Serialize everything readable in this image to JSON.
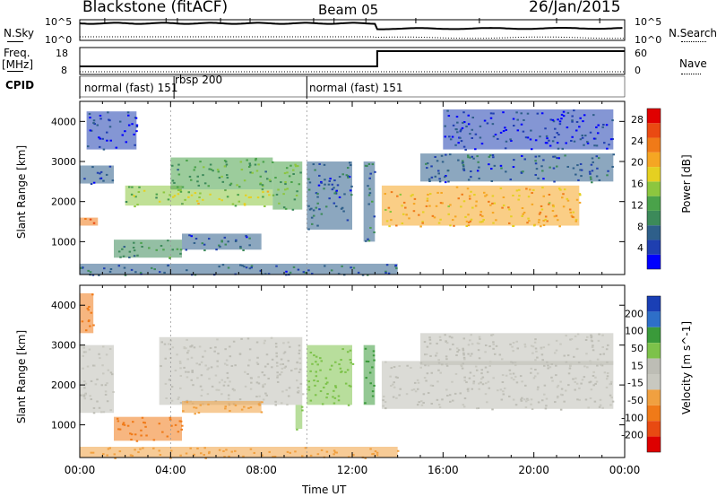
{
  "header": {
    "station": "Blackstone (fitACF)",
    "beam": "Beam 05",
    "date": "26/Jan/2015"
  },
  "noise_panel": {
    "left_label": "N.Sky",
    "left_ticks": [
      "10^5",
      "10^0"
    ],
    "right_label": "N.Search",
    "right_ticks": [
      "10^5",
      "10^0"
    ]
  },
  "freq_panel": {
    "left_label_line1": "Freq.",
    "left_label_line2": "[MHz]",
    "left_ticks": [
      "18",
      "8"
    ],
    "right_label": "Nave",
    "right_ticks": [
      "60",
      "0"
    ]
  },
  "cpid": {
    "label": "CPID",
    "modes": [
      {
        "name": "normal (fast) 151",
        "start_hour": 0
      },
      {
        "name": "rbsp 200",
        "start_hour": 4.15
      },
      {
        "name": "normal (fast) 151",
        "start_hour": 10
      }
    ]
  },
  "x_axis": {
    "label": "Time UT",
    "ticks": [
      "00:00",
      "04:00",
      "08:00",
      "12:00",
      "16:00",
      "20:00",
      "00:00"
    ],
    "range_hours": [
      0,
      24
    ]
  },
  "colors": {
    "power": [
      "#0000ff",
      "#1f3fb0",
      "#2e5f8a",
      "#3c8a5a",
      "#4aa24a",
      "#8cc63f",
      "#e5d021",
      "#f5a623",
      "#f07a18",
      "#ea4a12",
      "#e00000"
    ],
    "velocity": [
      "#1a3fb5",
      "#2e6fc8",
      "#3a9a3a",
      "#7dc24a",
      "#bdbdb5",
      "#c8c8c0",
      "#f0a040",
      "#f07a18",
      "#e84a12",
      "#dd0000"
    ]
  },
  "chart_data": [
    {
      "type": "heatmap",
      "title": "Power",
      "xlabel": "Time UT",
      "ylabel": "Slant Range [km]",
      "xlim": [
        0,
        24
      ],
      "ylim": [
        180,
        4500
      ],
      "yticks": [
        1000,
        2000,
        3000,
        4000
      ],
      "colorbar": {
        "label": "Power [dB]",
        "ticks": [
          4,
          8,
          12,
          16,
          20,
          24,
          28
        ],
        "range": [
          0,
          30
        ]
      },
      "regions": [
        {
          "t": [
            0.0,
            0.8
          ],
          "r": [
            1400,
            1600
          ],
          "value": 24
        },
        {
          "t": [
            0.0,
            1.5
          ],
          "r": [
            2450,
            2900
          ],
          "value": 6
        },
        {
          "t": [
            0.3,
            2.5
          ],
          "r": [
            3300,
            4250
          ],
          "value": 4
        },
        {
          "t": [
            1.5,
            4.5
          ],
          "r": [
            600,
            1050
          ],
          "value": 10
        },
        {
          "t": [
            2.0,
            4.5
          ],
          "r": [
            1900,
            2400
          ],
          "value": 14
        },
        {
          "t": [
            4.0,
            8.5
          ],
          "r": [
            2300,
            3100
          ],
          "value": 12
        },
        {
          "t": [
            4.5,
            8.5
          ],
          "r": [
            1900,
            2300
          ],
          "value": 16
        },
        {
          "t": [
            4.5,
            8.0
          ],
          "r": [
            800,
            1200
          ],
          "value": 6
        },
        {
          "t": [
            8.5,
            9.8
          ],
          "r": [
            1800,
            3000
          ],
          "value": 12
        },
        {
          "t": [
            10.0,
            12.0
          ],
          "r": [
            1300,
            3000
          ],
          "value": 6
        },
        {
          "t": [
            12.5,
            13.0
          ],
          "r": [
            1000,
            3000
          ],
          "value": 8
        },
        {
          "t": [
            13.3,
            22.0
          ],
          "r": [
            1400,
            2400
          ],
          "value": 20
        },
        {
          "t": [
            15.0,
            23.5
          ],
          "r": [
            2500,
            3200
          ],
          "value": 6
        },
        {
          "t": [
            16.0,
            23.5
          ],
          "r": [
            3300,
            4300
          ],
          "value": 4
        },
        {
          "t": [
            0.0,
            14.0
          ],
          "r": [
            180,
            450
          ],
          "value": 6
        }
      ]
    },
    {
      "type": "heatmap",
      "title": "Velocity",
      "xlabel": "Time UT",
      "ylabel": "Slant Range [km]",
      "xlim": [
        0,
        24
      ],
      "ylim": [
        180,
        4500
      ],
      "yticks": [
        1000,
        2000,
        3000,
        4000
      ],
      "colorbar": {
        "label": "Velocity [m s^-1]",
        "ticks": [
          200,
          100,
          50,
          15,
          -15,
          -50,
          -100,
          -200
        ]
      },
      "regions": [
        {
          "t": [
            0.0,
            1.5
          ],
          "r": [
            1300,
            3000
          ],
          "value": 0
        },
        {
          "t": [
            0.0,
            0.6
          ],
          "r": [
            3300,
            4300
          ],
          "value": -60
        },
        {
          "t": [
            1.5,
            4.5
          ],
          "r": [
            600,
            1200
          ],
          "value": -60
        },
        {
          "t": [
            3.5,
            9.8
          ],
          "r": [
            1500,
            3200
          ],
          "value": 0
        },
        {
          "t": [
            4.5,
            8.0
          ],
          "r": [
            1300,
            1600
          ],
          "value": -20
        },
        {
          "t": [
            9.5,
            9.8
          ],
          "r": [
            900,
            1500
          ],
          "value": 40
        },
        {
          "t": [
            10.0,
            12.0
          ],
          "r": [
            1500,
            3000
          ],
          "value": 30
        },
        {
          "t": [
            12.5,
            13.0
          ],
          "r": [
            1500,
            3000
          ],
          "value": 60
        },
        {
          "t": [
            13.3,
            23.5
          ],
          "r": [
            1400,
            2600
          ],
          "value": 0
        },
        {
          "t": [
            15.0,
            23.5
          ],
          "r": [
            2500,
            3300
          ],
          "value": 0
        },
        {
          "t": [
            0.0,
            14.0
          ],
          "r": [
            180,
            450
          ],
          "value": -40
        }
      ]
    }
  ]
}
